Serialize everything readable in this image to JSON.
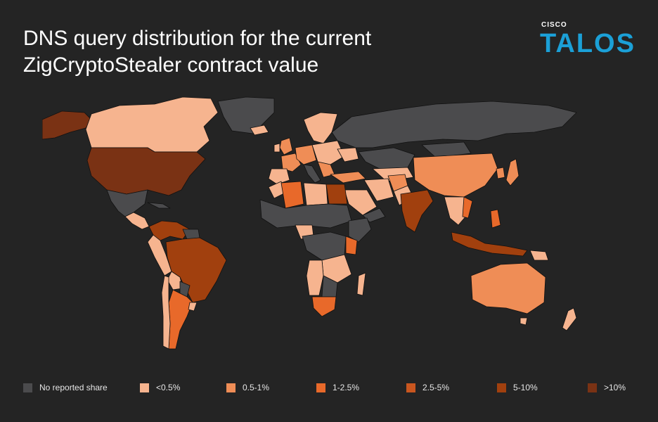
{
  "header": {
    "title_line1": "DNS query distribution for the current",
    "title_line2": "ZigCryptoStealer contract value"
  },
  "logo": {
    "small_text": "CISCO",
    "main_text": "TALOS",
    "color": "#1ba0d7"
  },
  "map": {
    "background": "#242424",
    "border_color": "#111111",
    "categories": {
      "none": "#4b4b4d",
      "lt05": "#f6b48f",
      "05_1": "#ef8d56",
      "1_25": "#e8692a",
      "25_5": "#c9561f",
      "5_10": "#a1400e",
      "gt10": "#7a3214"
    }
  },
  "legend": [
    {
      "label": "No reported share",
      "color": "#4b4b4d"
    },
    {
      "label": "<0.5%",
      "color": "#f6b48f"
    },
    {
      "label": "0.5-1%",
      "color": "#ef8d56"
    },
    {
      "label": "1-2.5%",
      "color": "#e8692a"
    },
    {
      "label": "2.5-5%",
      "color": "#c9561f"
    },
    {
      "label": "5-10%",
      "color": "#a1400e"
    },
    {
      "label": ">10%",
      "color": "#7a3214"
    }
  ]
}
